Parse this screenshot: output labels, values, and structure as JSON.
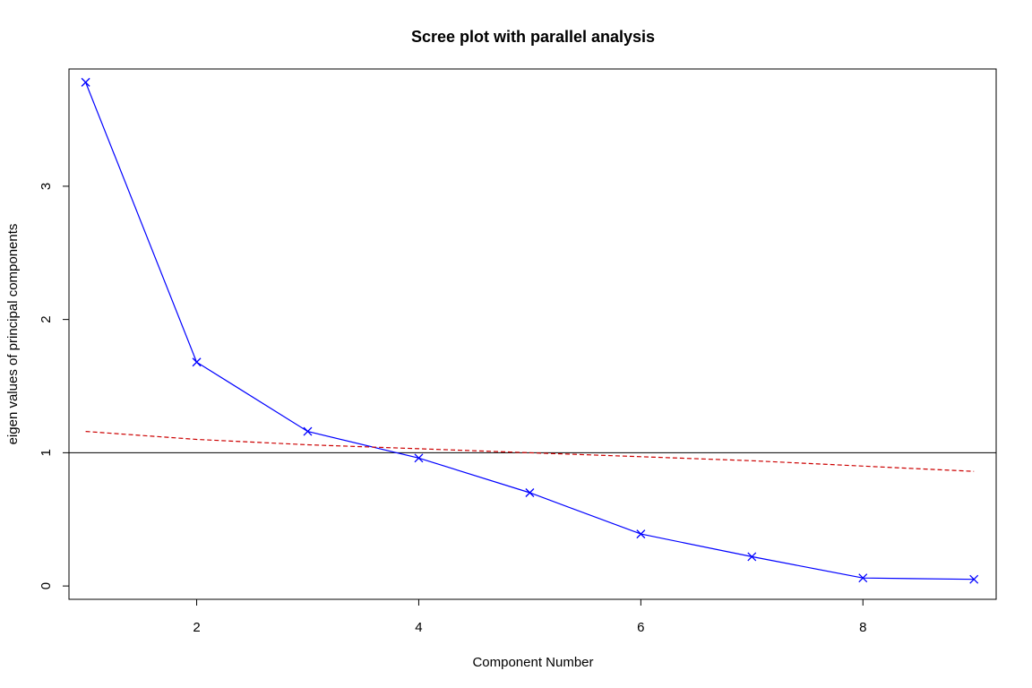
{
  "chart_data": {
    "type": "line",
    "title": "Scree plot with parallel analysis",
    "xlabel": "Component Number",
    "ylabel": "eigen values of principal components",
    "xlim": [
      0.85,
      9.2
    ],
    "ylim": [
      -0.1,
      3.88
    ],
    "x_ticks": [
      2,
      4,
      6,
      8
    ],
    "y_ticks": [
      0,
      1,
      2,
      3
    ],
    "grid": false,
    "legend": "none",
    "reference_line": {
      "y": 1,
      "color": "#000000"
    },
    "series": [
      {
        "role": "actual",
        "color": "#0000ff",
        "marker": "x",
        "x": [
          1,
          2,
          3,
          4,
          5,
          6,
          7,
          8,
          9
        ],
        "values": [
          3.78,
          1.68,
          1.16,
          0.96,
          0.7,
          0.39,
          0.22,
          0.06,
          0.05
        ]
      },
      {
        "role": "simulated",
        "color": "#cc0000",
        "line_style": "dashed",
        "x": [
          1,
          2,
          3,
          4,
          5,
          6,
          7,
          8,
          9
        ],
        "values": [
          1.16,
          1.1,
          1.06,
          1.03,
          1.0,
          0.97,
          0.94,
          0.9,
          0.86
        ]
      }
    ]
  }
}
